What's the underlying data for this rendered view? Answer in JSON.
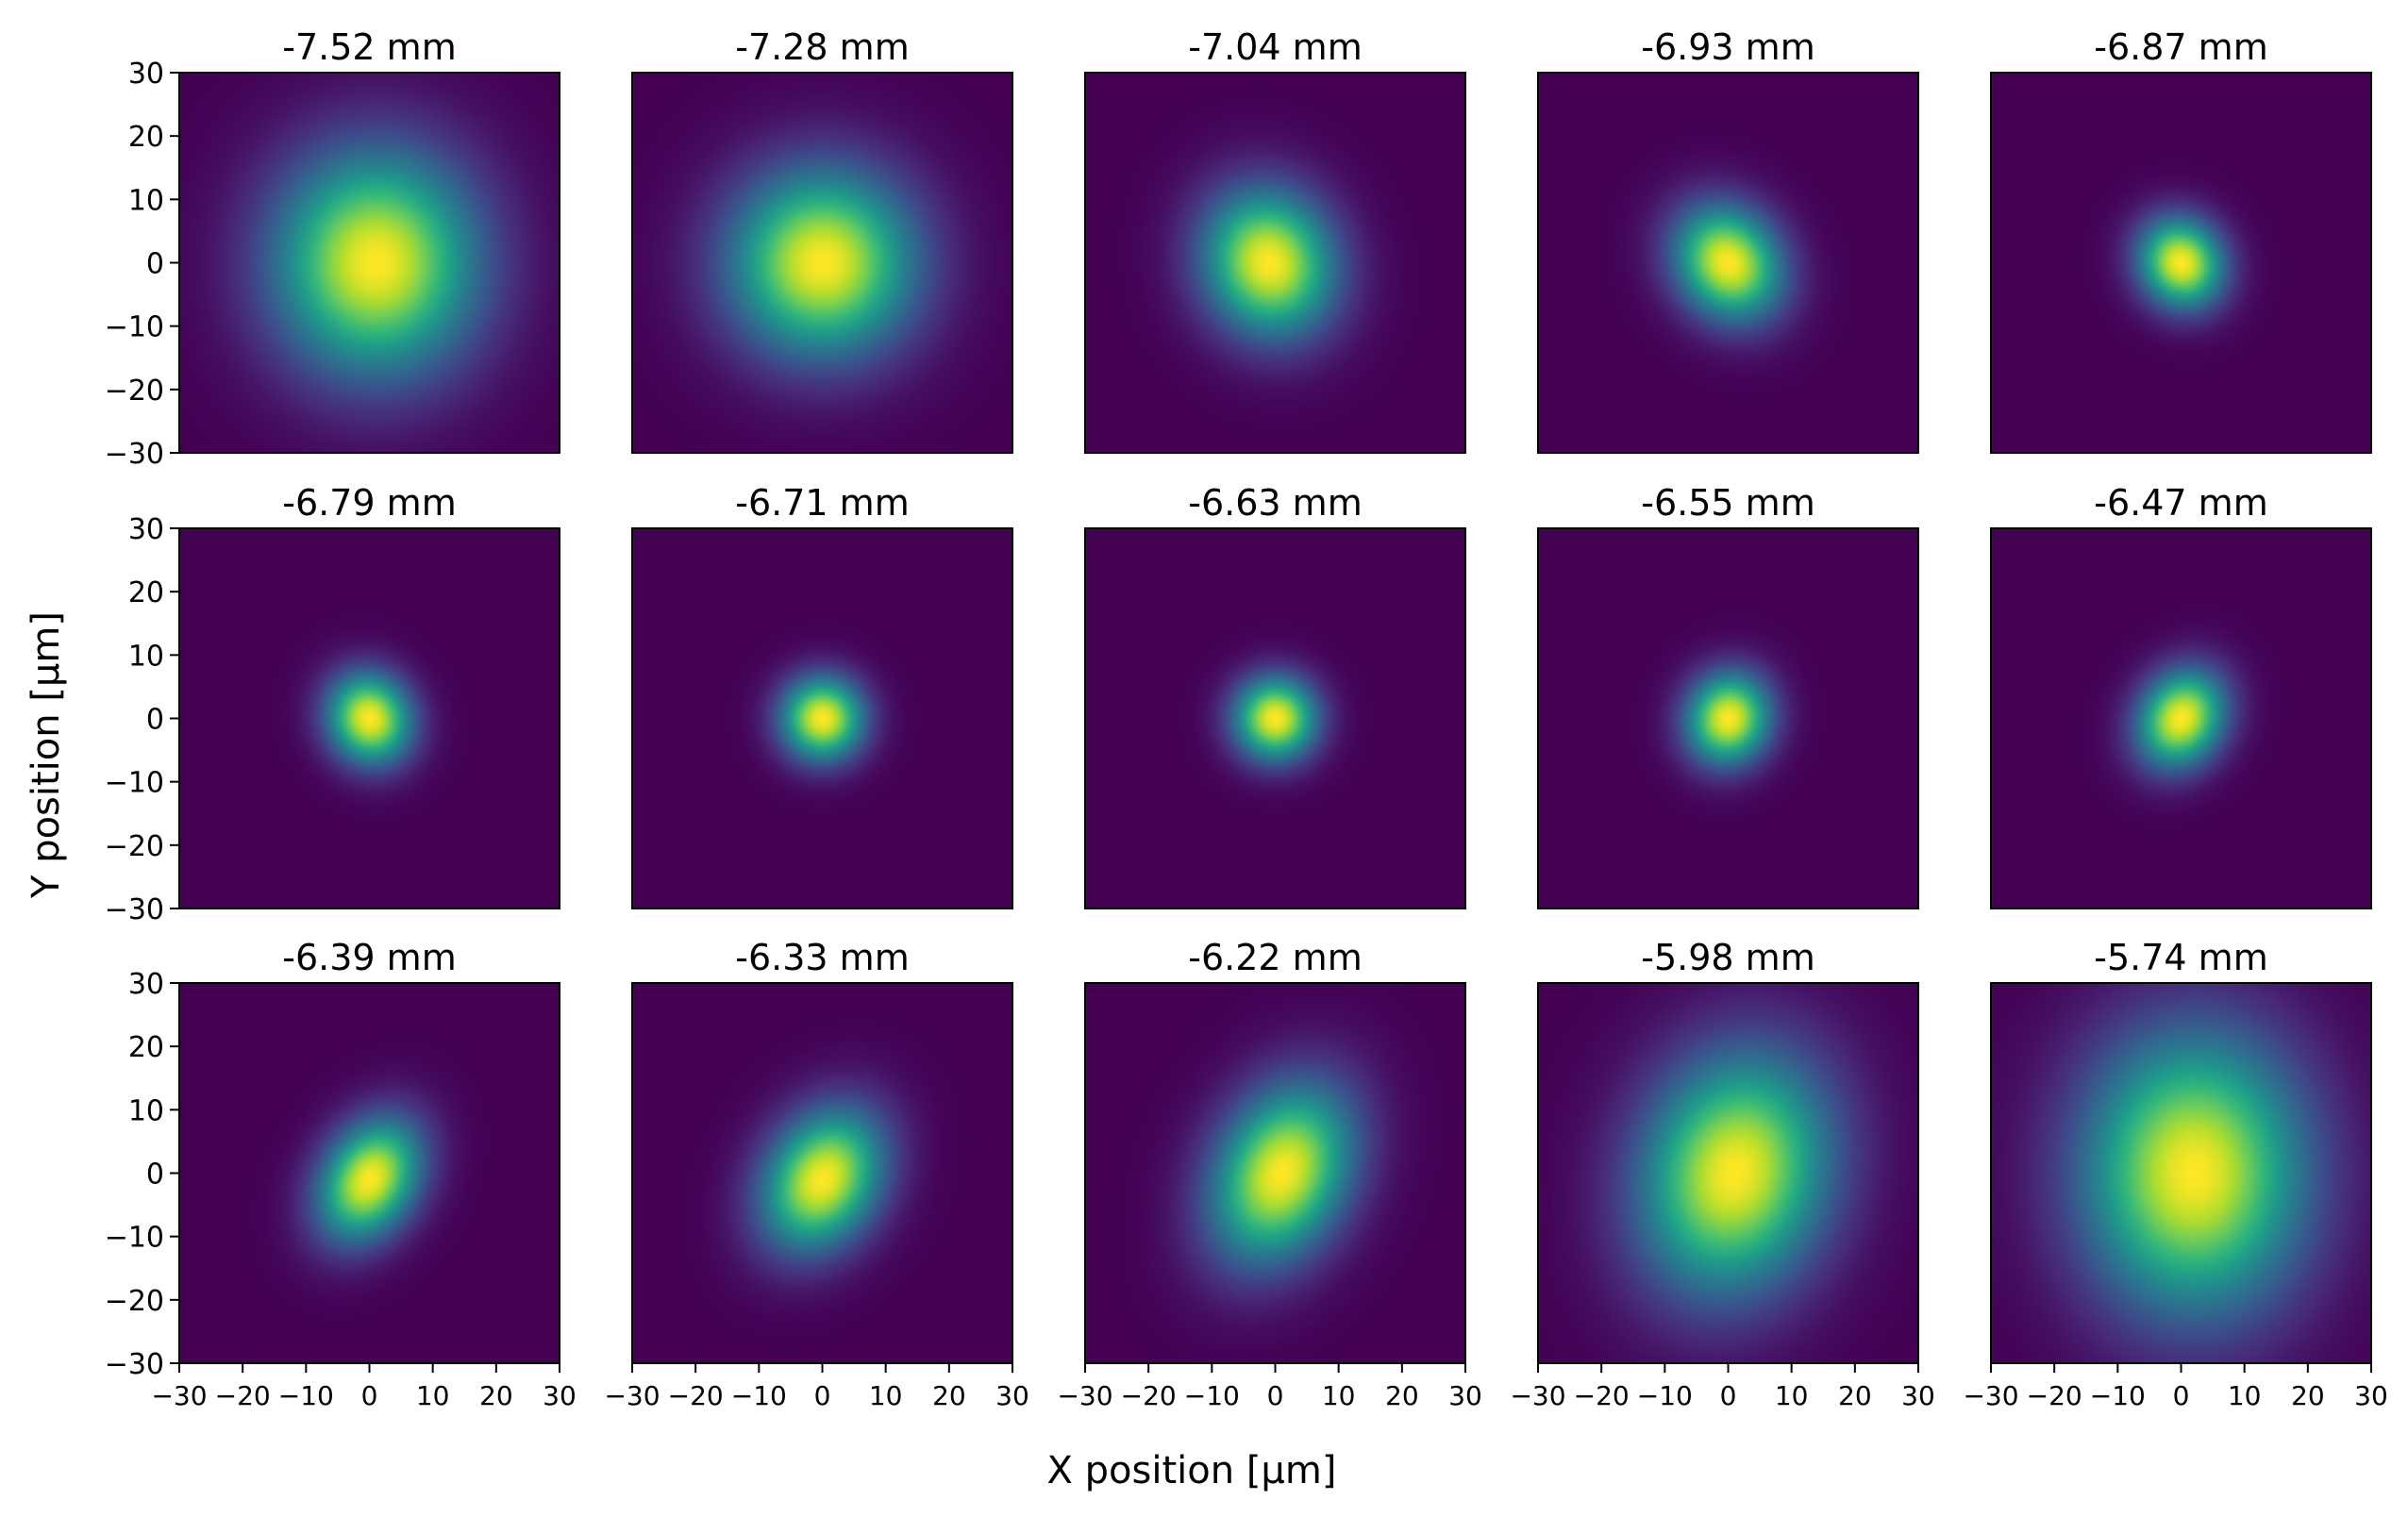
{
  "figure": {
    "xlabel": "X position [μm]",
    "ylabel": "Y position [μm]",
    "colormap": "viridis",
    "colors": {
      "low": "#440154",
      "mid": "#21918c",
      "high": "#fde725"
    },
    "grid": false
  },
  "chart_data": [
    {
      "type": "heatmap",
      "title": "-7.52 mm",
      "xlim": [
        -30,
        30
      ],
      "ylim": [
        -30,
        30
      ],
      "xticks": [
        -30,
        -20,
        -10,
        0,
        10,
        20,
        30
      ],
      "yticks": [
        30,
        20,
        10,
        0,
        -10,
        -20,
        -30
      ],
      "center": [
        1,
        0
      ],
      "sigma": [
        11,
        12
      ],
      "tilt": 0
    },
    {
      "type": "heatmap",
      "title": "-7.28 mm",
      "xlim": [
        -30,
        30
      ],
      "ylim": [
        -30,
        30
      ],
      "xticks": [
        -30,
        -20,
        -10,
        0,
        10,
        20,
        30
      ],
      "yticks": [
        30,
        20,
        10,
        0,
        -10,
        -20,
        -30
      ],
      "center": [
        0,
        0
      ],
      "sigma": [
        10,
        10
      ],
      "tilt": 0
    },
    {
      "type": "heatmap",
      "title": "-7.04 mm",
      "xlim": [
        -30,
        30
      ],
      "ylim": [
        -30,
        30
      ],
      "xticks": [
        -30,
        -20,
        -10,
        0,
        10,
        20,
        30
      ],
      "yticks": [
        30,
        20,
        10,
        0,
        -10,
        -20,
        -30
      ],
      "center": [
        -1,
        0
      ],
      "sigma": [
        7,
        8
      ],
      "tilt": 20
    },
    {
      "type": "heatmap",
      "title": "-6.93 mm",
      "xlim": [
        -30,
        30
      ],
      "ylim": [
        -30,
        30
      ],
      "xticks": [
        -30,
        -20,
        -10,
        0,
        10,
        20,
        30
      ],
      "yticks": [
        30,
        20,
        10,
        0,
        -10,
        -20,
        -30
      ],
      "center": [
        0,
        0
      ],
      "sigma": [
        5.5,
        6.5
      ],
      "tilt": 35
    },
    {
      "type": "heatmap",
      "title": "-6.87 mm",
      "xlim": [
        -30,
        30
      ],
      "ylim": [
        -30,
        30
      ],
      "xticks": [
        -30,
        -20,
        -10,
        0,
        10,
        20,
        30
      ],
      "yticks": [
        30,
        20,
        10,
        0,
        -10,
        -20,
        -30
      ],
      "center": [
        0,
        0
      ],
      "sigma": [
        4.5,
        5
      ],
      "tilt": 30
    },
    {
      "type": "heatmap",
      "title": "-6.79 mm",
      "xlim": [
        -30,
        30
      ],
      "ylim": [
        -30,
        30
      ],
      "xticks": [
        -30,
        -20,
        -10,
        0,
        10,
        20,
        30
      ],
      "yticks": [
        30,
        20,
        10,
        0,
        -10,
        -20,
        -30
      ],
      "center": [
        0,
        0
      ],
      "sigma": [
        4.5,
        5
      ],
      "tilt": 25
    },
    {
      "type": "heatmap",
      "title": "-6.71 mm",
      "xlim": [
        -30,
        30
      ],
      "ylim": [
        -30,
        30
      ],
      "xticks": [
        -30,
        -20,
        -10,
        0,
        10,
        20,
        30
      ],
      "yticks": [
        30,
        20,
        10,
        0,
        -10,
        -20,
        -30
      ],
      "center": [
        0,
        0
      ],
      "sigma": [
        4.5,
        4.5
      ],
      "tilt": 0
    },
    {
      "type": "heatmap",
      "title": "-6.63 mm",
      "xlim": [
        -30,
        30
      ],
      "ylim": [
        -30,
        30
      ],
      "xticks": [
        -30,
        -20,
        -10,
        0,
        10,
        20,
        30
      ],
      "yticks": [
        30,
        20,
        10,
        0,
        -10,
        -20,
        -30
      ],
      "center": [
        0,
        0
      ],
      "sigma": [
        4.5,
        4.5
      ],
      "tilt": 0
    },
    {
      "type": "heatmap",
      "title": "-6.55 mm",
      "xlim": [
        -30,
        30
      ],
      "ylim": [
        -30,
        30
      ],
      "xticks": [
        -30,
        -20,
        -10,
        0,
        10,
        20,
        30
      ],
      "yticks": [
        30,
        20,
        10,
        0,
        -10,
        -20,
        -30
      ],
      "center": [
        0,
        0
      ],
      "sigma": [
        4.5,
        5
      ],
      "tilt": -20
    },
    {
      "type": "heatmap",
      "title": "-6.47 mm",
      "xlim": [
        -30,
        30
      ],
      "ylim": [
        -30,
        30
      ],
      "xticks": [
        -30,
        -20,
        -10,
        0,
        10,
        20,
        30
      ],
      "yticks": [
        30,
        20,
        10,
        0,
        -10,
        -20,
        -30
      ],
      "center": [
        0,
        0
      ],
      "sigma": [
        4.5,
        5.5
      ],
      "tilt": -30
    },
    {
      "type": "heatmap",
      "title": "-6.39 mm",
      "xlim": [
        -30,
        30
      ],
      "ylim": [
        -30,
        30
      ],
      "xticks": [
        -30,
        -20,
        -10,
        0,
        10,
        20,
        30
      ],
      "yticks": [
        30,
        20,
        10,
        0,
        -10,
        -20,
        -30
      ],
      "center": [
        0,
        -1
      ],
      "sigma": [
        5,
        7
      ],
      "tilt": -30
    },
    {
      "type": "heatmap",
      "title": "-6.33 mm",
      "xlim": [
        -30,
        30
      ],
      "ylim": [
        -30,
        30
      ],
      "xticks": [
        -30,
        -20,
        -10,
        0,
        10,
        20,
        30
      ],
      "yticks": [
        30,
        20,
        10,
        0,
        -10,
        -20,
        -30
      ],
      "center": [
        0,
        -1
      ],
      "sigma": [
        6,
        8
      ],
      "tilt": -30
    },
    {
      "type": "heatmap",
      "title": "-6.22 mm",
      "xlim": [
        -30,
        30
      ],
      "ylim": [
        -30,
        30
      ],
      "xticks": [
        -30,
        -20,
        -10,
        0,
        10,
        20,
        30
      ],
      "yticks": [
        30,
        20,
        10,
        0,
        -10,
        -20,
        -30
      ],
      "center": [
        1,
        0
      ],
      "sigma": [
        7,
        10
      ],
      "tilt": -25
    },
    {
      "type": "heatmap",
      "title": "-5.98 mm",
      "xlim": [
        -30,
        30
      ],
      "ylim": [
        -30,
        30
      ],
      "xticks": [
        -30,
        -20,
        -10,
        0,
        10,
        20,
        30
      ],
      "yticks": [
        30,
        20,
        10,
        0,
        -10,
        -20,
        -30
      ],
      "center": [
        1,
        0
      ],
      "sigma": [
        10,
        13
      ],
      "tilt": -15
    },
    {
      "type": "heatmap",
      "title": "-5.74 mm",
      "xlim": [
        -30,
        30
      ],
      "ylim": [
        -30,
        30
      ],
      "xticks": [
        -30,
        -20,
        -10,
        0,
        10,
        20,
        30
      ],
      "yticks": [
        30,
        20,
        10,
        0,
        -10,
        -20,
        -30
      ],
      "center": [
        2,
        0
      ],
      "sigma": [
        12,
        15
      ],
      "tilt": 0
    }
  ]
}
